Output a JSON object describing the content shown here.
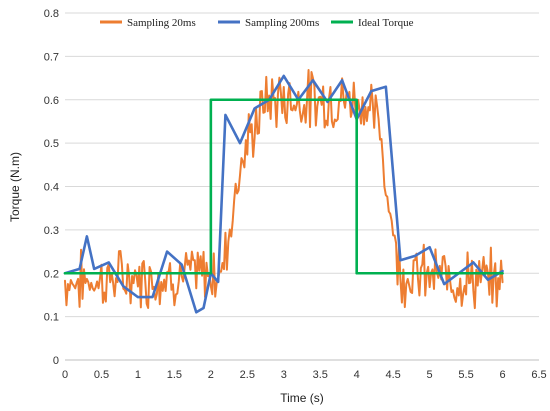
{
  "chart_data": {
    "type": "line",
    "xlabel": "Time (s)",
    "ylabel": "Torque (N.m)",
    "xlim": [
      0,
      6.5
    ],
    "ylim": [
      0,
      0.8
    ],
    "x_ticks": [
      "0",
      "0.5",
      "1",
      "1.5",
      "2",
      "2.5",
      "3",
      "3.5",
      "4",
      "4.5",
      "5",
      "5.5",
      "6",
      "6.5"
    ],
    "y_ticks": [
      "0",
      "0.1",
      "0.2",
      "0.3",
      "0.4",
      "0.5",
      "0.6",
      "0.7",
      "0.8"
    ],
    "grid": "horizontal",
    "legend_position": "top",
    "series": [
      {
        "name": "Sampling 20ms",
        "color": "#ED7D31",
        "generator": "noisy",
        "dt": 0.02,
        "x_start": 0,
        "x_end": 6,
        "noise_amplitude": 0.05,
        "anchors": [
          [
            0,
            0.18
          ],
          [
            2.15,
            0.2
          ],
          [
            2.4,
            0.45
          ],
          [
            2.75,
            0.6
          ],
          [
            4.05,
            0.6
          ],
          [
            4.3,
            0.55
          ],
          [
            4.45,
            0.35
          ],
          [
            4.6,
            0.2
          ],
          [
            6,
            0.18
          ]
        ]
      },
      {
        "name": "Sampling 200ms",
        "color": "#4472C4",
        "generator": "points",
        "x": [
          0,
          0.2,
          0.3,
          0.4,
          0.6,
          0.8,
          1.0,
          1.2,
          1.4,
          1.6,
          1.8,
          1.9,
          2.0,
          2.1,
          2.2,
          2.4,
          2.6,
          2.8,
          3.0,
          3.2,
          3.4,
          3.6,
          3.8,
          4.0,
          4.2,
          4.4,
          4.6,
          4.8,
          5.0,
          5.2,
          5.4,
          5.6,
          5.8,
          6.0
        ],
        "y": [
          0.2,
          0.21,
          0.285,
          0.21,
          0.225,
          0.17,
          0.145,
          0.145,
          0.25,
          0.22,
          0.11,
          0.12,
          0.2,
          0.18,
          0.565,
          0.5,
          0.58,
          0.6,
          0.655,
          0.6,
          0.645,
          0.595,
          0.645,
          0.555,
          0.62,
          0.63,
          0.23,
          0.24,
          0.26,
          0.175,
          0.2,
          0.225,
          0.185,
          0.205
        ]
      },
      {
        "name": "Ideal Torque",
        "color": "#00B050",
        "generator": "points",
        "x": [
          0,
          2,
          2,
          4,
          4,
          6
        ],
        "y": [
          0.2,
          0.2,
          0.6,
          0.6,
          0.2,
          0.2
        ]
      }
    ]
  }
}
